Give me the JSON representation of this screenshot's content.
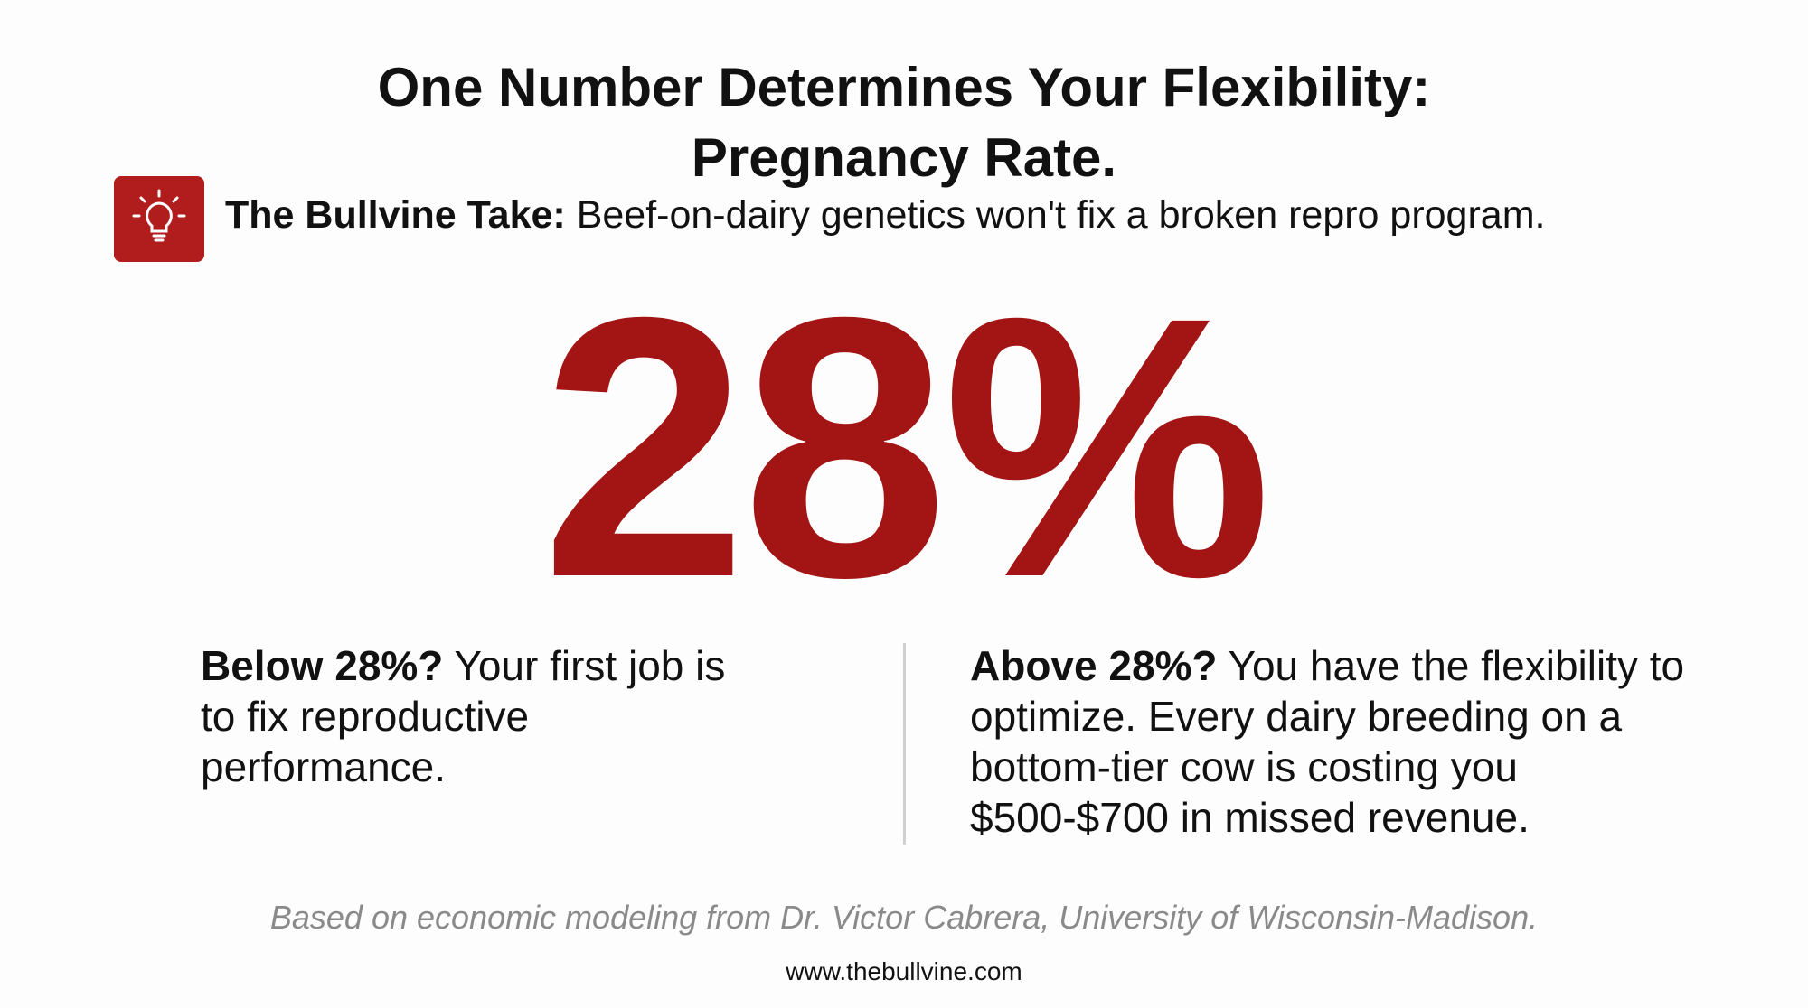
{
  "header": {
    "title_line1": "One Number Determines Your Flexibility:",
    "title_line2": "Pregnancy Rate.",
    "take_label": "The Bullvine Take:",
    "take_text": "Beef-on-dairy genetics won't fix a broken repro program."
  },
  "stat": "28%",
  "columns": [
    {
      "lead": "Below 28%?",
      "text": "Your first job is to fix reproductive performance."
    },
    {
      "lead": "Above 28%?",
      "text": "You have the flexibility to optimize. Every dairy breeding on a bottom-tier cow is costing you $500-$700 in missed revenue."
    }
  ],
  "footer": {
    "source": "Based on economic modeling from Dr. Victor Cabrera, University of Wisconsin-Madison.",
    "url": "www.thebullvine.com"
  }
}
